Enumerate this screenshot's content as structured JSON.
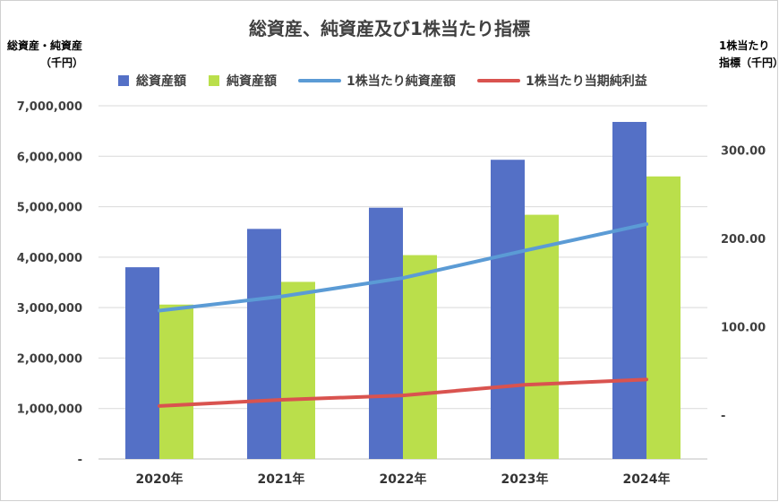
{
  "chart_data": {
    "type": "bar",
    "title": "総資産、純資産及び1株当たり指標",
    "ylabel_left_line1": "総資産・純資産",
    "ylabel_left_line2": "（千円）",
    "ylabel_right_line1": "1株当たり",
    "ylabel_right_line2": "指標（千円）",
    "categories": [
      "2020年",
      "2021年",
      "2022年",
      "2023年",
      "2024年"
    ],
    "left_axis": {
      "ylim": [
        0,
        7000000
      ],
      "ticks": [
        0,
        1000000,
        2000000,
        3000000,
        4000000,
        5000000,
        6000000,
        7000000
      ],
      "tick_labels": [
        "-",
        "1,000,000",
        "2,000,000",
        "3,000,000",
        "4,000,000",
        "5,000,000",
        "6,000,000",
        "7,000,000"
      ]
    },
    "right_axis": {
      "ylim": [
        -50,
        350
      ],
      "ticks": [
        0,
        100,
        200,
        300
      ],
      "tick_labels": [
        "-",
        "100.00",
        "200.00",
        "300.00"
      ]
    },
    "grid": true,
    "legend_position": "top",
    "series": [
      {
        "name": "総資産額",
        "kind": "bar",
        "axis": "left",
        "color": "#5470C6",
        "values": [
          3800000,
          4560000,
          4980000,
          5930000,
          6680000
        ]
      },
      {
        "name": "純資産額",
        "kind": "bar",
        "axis": "left",
        "color": "#BADF4B",
        "values": [
          3060000,
          3510000,
          4040000,
          4840000,
          5600000
        ]
      },
      {
        "name": "1株当たり純資産額",
        "kind": "line",
        "axis": "right",
        "color": "#5B9BD5",
        "values": [
          118,
          134,
          155,
          186,
          216
        ]
      },
      {
        "name": "1株当たり当期純利益",
        "kind": "line",
        "axis": "right",
        "color": "#D9534F",
        "values": [
          10,
          17,
          22,
          34,
          40
        ]
      }
    ]
  }
}
